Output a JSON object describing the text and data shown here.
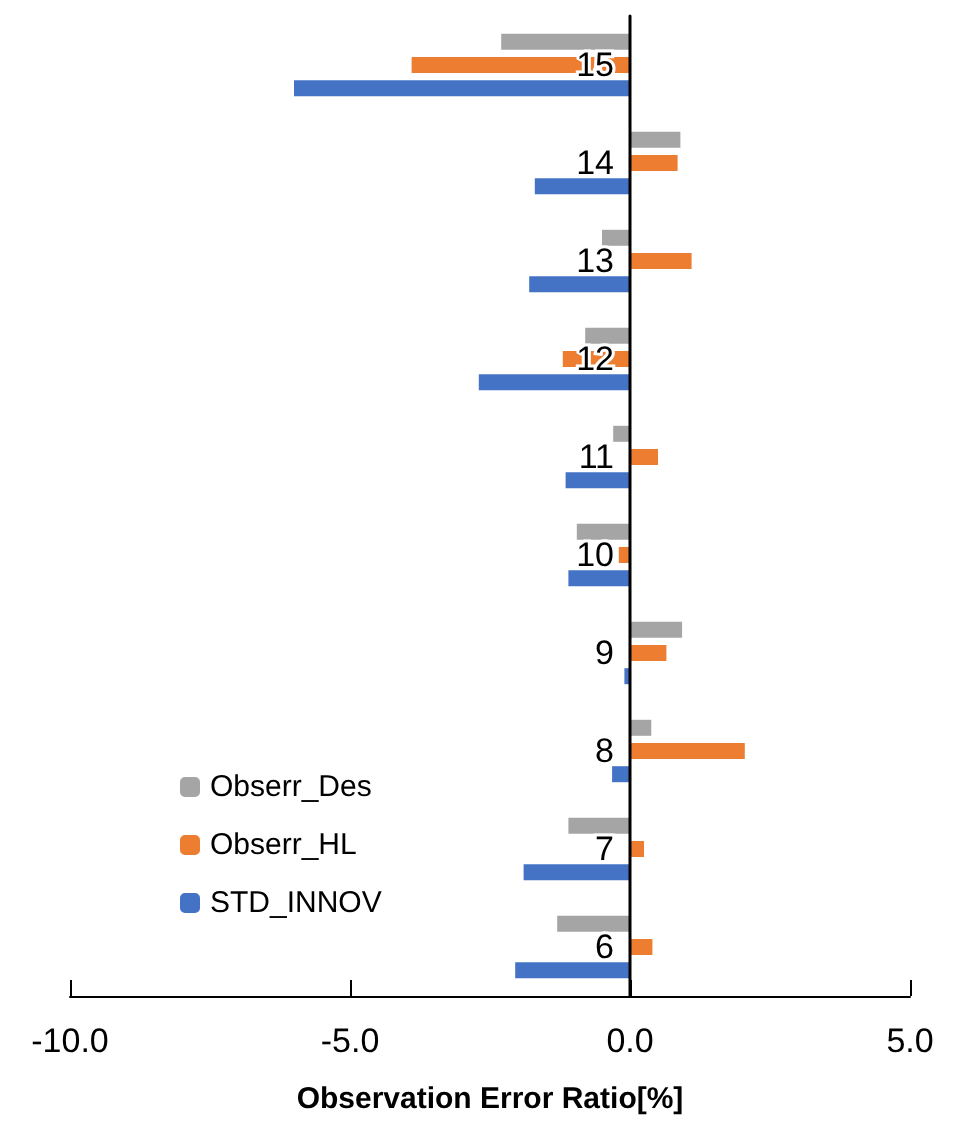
{
  "chart_data": {
    "type": "bar",
    "orientation": "horizontal",
    "xlabel": "Observation Error Ratio[%]",
    "categories": [
      "15",
      "14",
      "13",
      "12",
      "11",
      "10",
      "9",
      "8",
      "7",
      "6"
    ],
    "series": [
      {
        "name": "Obserr_Des",
        "color": "#a5a5a5",
        "values": [
          -2.3,
          0.9,
          -0.5,
          -0.8,
          -0.3,
          -0.95,
          0.93,
          0.38,
          -1.1,
          -1.3
        ]
      },
      {
        "name": "Obserr_HL",
        "color": "#ed7d31",
        "values": [
          -3.9,
          0.85,
          1.1,
          -1.2,
          0.5,
          -0.2,
          0.65,
          2.05,
          0.25,
          0.4
        ]
      },
      {
        "name": "STD_INNOV",
        "color": "#4472c4",
        "values": [
          -6.0,
          -1.7,
          -1.8,
          -2.7,
          -1.15,
          -1.1,
          -0.1,
          -0.32,
          -1.9,
          -2.05
        ]
      }
    ],
    "xlim": [
      -10,
      5
    ],
    "xticks": [
      {
        "value": -10,
        "label": "-10.0"
      },
      {
        "value": -5,
        "label": "-5.0"
      },
      {
        "value": 0,
        "label": "0.0"
      },
      {
        "value": 5,
        "label": "5.0"
      }
    ],
    "grid": false,
    "legend": "bottom left"
  }
}
